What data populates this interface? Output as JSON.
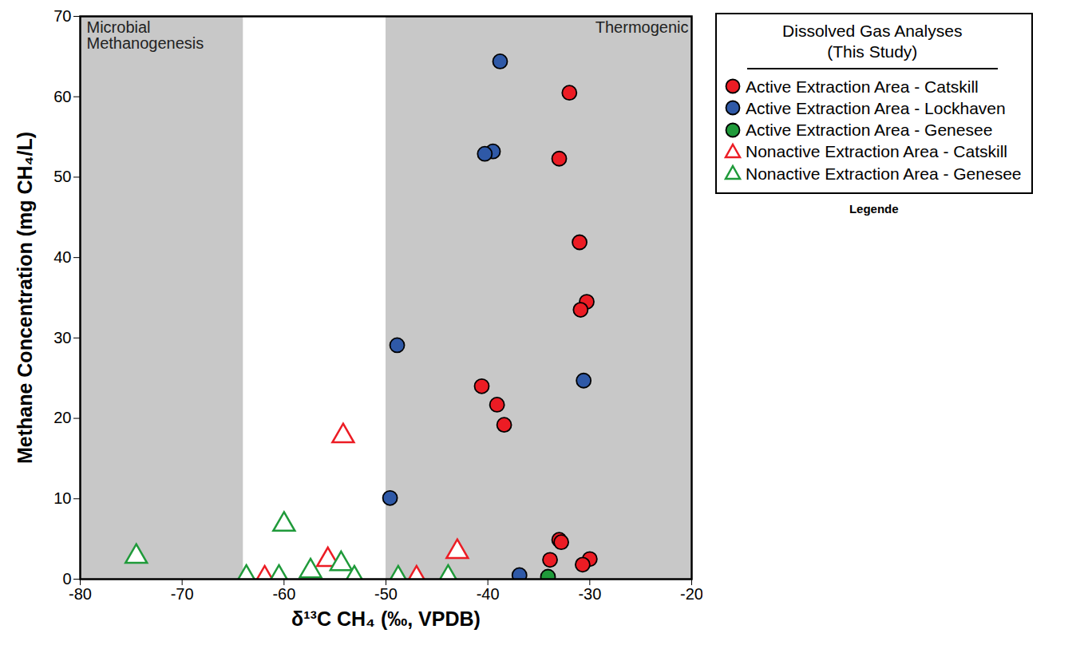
{
  "chart_data": {
    "type": "scatter",
    "x_label": "δ¹³C CH₄ (‰, VPDB)",
    "y_label": "Methane Concentration (mg CH₄/L)",
    "xlim": [
      -80,
      -20
    ],
    "xticks": [
      -80,
      -70,
      -60,
      -50,
      -40,
      -30,
      -20
    ],
    "ylim": [
      0,
      70
    ],
    "yticks": [
      0,
      10,
      20,
      30,
      40,
      50,
      60,
      70
    ],
    "regions": [
      {
        "label": "Microbial\nMethanogenesis",
        "x": [
          -80,
          -64
        ]
      },
      {
        "label": "Thermogenic",
        "x": [
          -50,
          -20
        ]
      }
    ],
    "legend": "right",
    "legend_title": [
      "Dissolved Gas Analyses",
      "(This Study)"
    ],
    "legend_note": "Legende",
    "series": [
      {
        "name": "Active Extraction Area - Catskill",
        "color": "#ec1c24",
        "marker": "circle",
        "x": [
          -32.0,
          -33.0,
          -31.0,
          -30.3,
          -30.9,
          -40.6,
          -39.1,
          -38.4,
          -33.0,
          -32.8,
          -33.9,
          -30.0,
          -30.7
        ],
        "values": [
          60.5,
          52.3,
          41.9,
          34.5,
          33.5,
          24.0,
          21.7,
          19.2,
          4.9,
          4.6,
          2.4,
          2.5,
          1.8
        ]
      },
      {
        "name": "Active Extraction Area - Lockhaven",
        "color": "#2f59a7",
        "marker": "circle",
        "x": [
          -38.8,
          -39.5,
          -40.3,
          -48.9,
          -30.6,
          -49.6,
          -36.9
        ],
        "values": [
          64.4,
          53.2,
          52.9,
          29.1,
          24.7,
          10.1,
          0.5
        ]
      },
      {
        "name": "Active Extraction Area - Genesee",
        "color": "#1f9a3a",
        "marker": "circle",
        "x": [
          -34.1
        ],
        "values": [
          0.3
        ]
      },
      {
        "name": "Nonactive Extraction Area - Catskill",
        "color": "#ec1c24",
        "marker": "triangle",
        "x": [
          -54.2,
          -43.0,
          -55.7,
          -61.9,
          -47.0
        ],
        "values": [
          17.8,
          3.4,
          2.4,
          0.1,
          0.1
        ]
      },
      {
        "name": "Nonactive Extraction Area - Genesee",
        "color": "#1f9a3a",
        "marker": "triangle",
        "x": [
          -74.5,
          -60.0,
          -54.4,
          -57.4,
          -63.7,
          -60.5,
          -53.1,
          -48.8,
          -43.9
        ],
        "values": [
          2.8,
          6.8,
          1.9,
          1.0,
          0.2,
          0.2,
          0.1,
          0.1,
          0.2
        ]
      }
    ]
  }
}
